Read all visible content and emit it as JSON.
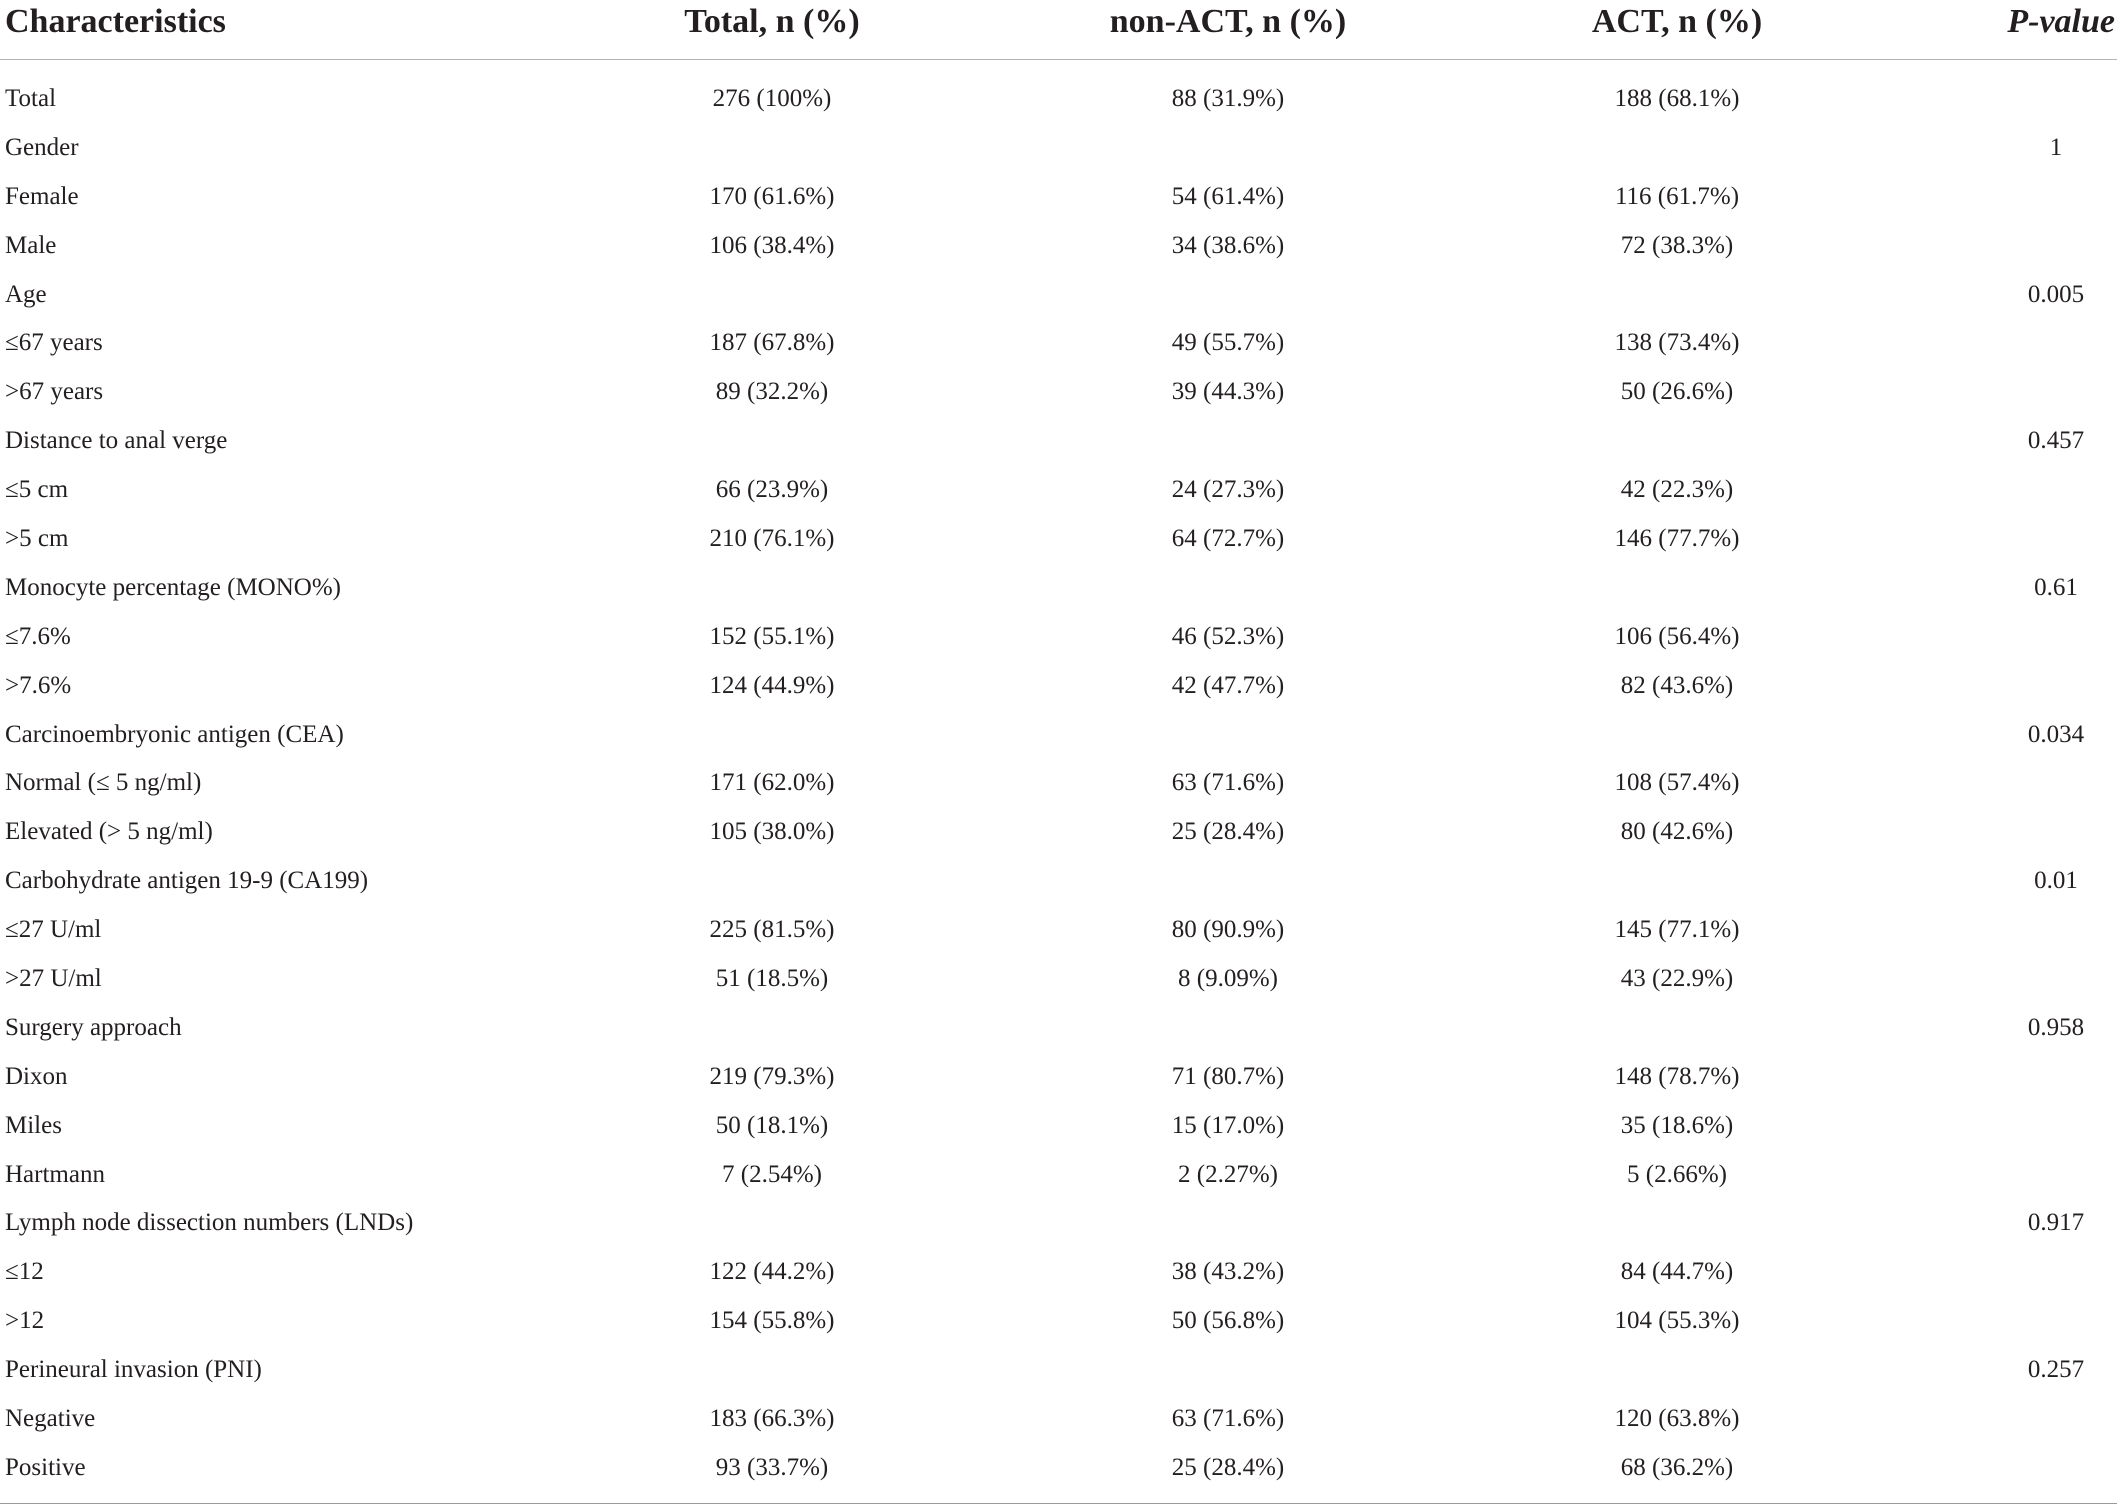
{
  "table": {
    "headers": {
      "characteristics": "Characteristics",
      "total": "Total, n (%)",
      "non_act": "non-ACT, n (%)",
      "act": "ACT, n (%)",
      "p_value": "P-value"
    },
    "rows": [
      {
        "characteristic": "Total",
        "total": "276 (100%)",
        "non_act": "88 (31.9%)",
        "act": "188 (68.1%)",
        "p_value": ""
      },
      {
        "characteristic": "Gender",
        "total": "",
        "non_act": "",
        "act": "",
        "p_value": "1"
      },
      {
        "characteristic": "Female",
        "total": "170 (61.6%)",
        "non_act": "54 (61.4%)",
        "act": "116 (61.7%)",
        "p_value": ""
      },
      {
        "characteristic": "Male",
        "total": "106 (38.4%)",
        "non_act": "34 (38.6%)",
        "act": "72 (38.3%)",
        "p_value": ""
      },
      {
        "characteristic": "Age",
        "total": "",
        "non_act": "",
        "act": "",
        "p_value": "0.005"
      },
      {
        "characteristic": "≤67 years",
        "total": "187 (67.8%)",
        "non_act": "49 (55.7%)",
        "act": "138 (73.4%)",
        "p_value": ""
      },
      {
        "characteristic": ">67 years",
        "total": "89 (32.2%)",
        "non_act": "39 (44.3%)",
        "act": "50 (26.6%)",
        "p_value": ""
      },
      {
        "characteristic": "Distance to anal verge",
        "total": "",
        "non_act": "",
        "act": "",
        "p_value": "0.457"
      },
      {
        "characteristic": "≤5 cm",
        "total": "66 (23.9%)",
        "non_act": "24 (27.3%)",
        "act": "42 (22.3%)",
        "p_value": ""
      },
      {
        "characteristic": ">5 cm",
        "total": "210 (76.1%)",
        "non_act": "64 (72.7%)",
        "act": "146 (77.7%)",
        "p_value": ""
      },
      {
        "characteristic": "Monocyte percentage (MONO%)",
        "total": "",
        "non_act": "",
        "act": "",
        "p_value": "0.61"
      },
      {
        "characteristic": "≤7.6%",
        "total": "152 (55.1%)",
        "non_act": "46 (52.3%)",
        "act": "106 (56.4%)",
        "p_value": ""
      },
      {
        "characteristic": ">7.6%",
        "total": "124 (44.9%)",
        "non_act": "42 (47.7%)",
        "act": "82 (43.6%)",
        "p_value": ""
      },
      {
        "characteristic": "Carcinoembryonic antigen (CEA)",
        "total": "",
        "non_act": "",
        "act": "",
        "p_value": "0.034"
      },
      {
        "characteristic": "Normal (≤ 5 ng/ml)",
        "total": "171 (62.0%)",
        "non_act": "63 (71.6%)",
        "act": "108 (57.4%)",
        "p_value": ""
      },
      {
        "characteristic": "Elevated (> 5 ng/ml)",
        "total": "105 (38.0%)",
        "non_act": "25 (28.4%)",
        "act": "80 (42.6%)",
        "p_value": ""
      },
      {
        "characteristic": "Carbohydrate antigen 19-9 (CA199)",
        "total": "",
        "non_act": "",
        "act": "",
        "p_value": "0.01"
      },
      {
        "characteristic": "≤27 U/ml",
        "total": "225 (81.5%)",
        "non_act": "80 (90.9%)",
        "act": "145 (77.1%)",
        "p_value": ""
      },
      {
        "characteristic": ">27 U/ml",
        "total": "51 (18.5%)",
        "non_act": "8 (9.09%)",
        "act": "43 (22.9%)",
        "p_value": ""
      },
      {
        "characteristic": "Surgery approach",
        "total": "",
        "non_act": "",
        "act": "",
        "p_value": "0.958"
      },
      {
        "characteristic": "Dixon",
        "total": "219 (79.3%)",
        "non_act": "71 (80.7%)",
        "act": "148 (78.7%)",
        "p_value": ""
      },
      {
        "characteristic": "Miles",
        "total": "50 (18.1%)",
        "non_act": "15 (17.0%)",
        "act": "35 (18.6%)",
        "p_value": ""
      },
      {
        "characteristic": "Hartmann",
        "total": "7 (2.54%)",
        "non_act": "2 (2.27%)",
        "act": "5 (2.66%)",
        "p_value": ""
      },
      {
        "characteristic": "Lymph node dissection numbers (LNDs)",
        "total": "",
        "non_act": "",
        "act": "",
        "p_value": "0.917"
      },
      {
        "characteristic": "≤12",
        "total": "122 (44.2%)",
        "non_act": "38 (43.2%)",
        "act": "84 (44.7%)",
        "p_value": ""
      },
      {
        "characteristic": ">12",
        "total": "154 (55.8%)",
        "non_act": "50 (56.8%)",
        "act": "104 (55.3%)",
        "p_value": ""
      },
      {
        "characteristic": "Perineural invasion (PNI)",
        "total": "",
        "non_act": "",
        "act": "",
        "p_value": "0.257"
      },
      {
        "characteristic": "Negative",
        "total": "183 (66.3%)",
        "non_act": "63 (71.6%)",
        "act": "120 (63.8%)",
        "p_value": ""
      },
      {
        "characteristic": "Positive",
        "total": "93 (33.7%)",
        "non_act": "25 (28.4%)",
        "act": "68 (36.2%)",
        "p_value": ""
      }
    ]
  }
}
